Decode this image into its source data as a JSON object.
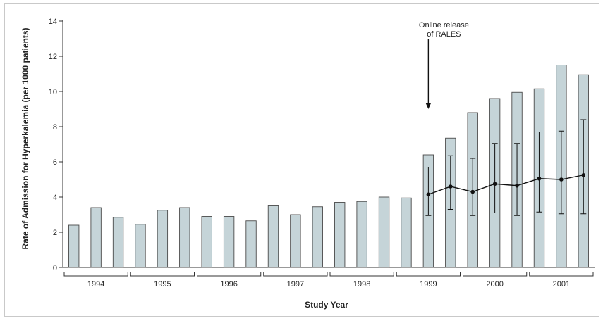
{
  "chart_data": {
    "type": "bar",
    "xlabel": "Study Year",
    "ylabel": "Rate of Admission for Hyperkalemia (per 1000 patients)",
    "ylim": [
      0,
      14
    ],
    "yticks": [
      0,
      2,
      4,
      6,
      8,
      10,
      12,
      14
    ],
    "ytick_labels": [
      "0",
      "2",
      "4",
      "6",
      "8",
      "10",
      "12",
      "14"
    ],
    "years": [
      "1994",
      "1995",
      "1996",
      "1997",
      "1998",
      "1999",
      "2000",
      "2001"
    ],
    "bars_per_year": 3,
    "quarters": [
      {
        "year": "1994",
        "q": 1
      },
      {
        "year": "1994",
        "q": 2
      },
      {
        "year": "1994",
        "q": 3
      },
      {
        "year": "1995",
        "q": 1
      },
      {
        "year": "1995",
        "q": 2
      },
      {
        "year": "1995",
        "q": 3
      },
      {
        "year": "1996",
        "q": 1
      },
      {
        "year": "1996",
        "q": 2
      },
      {
        "year": "1996",
        "q": 3
      },
      {
        "year": "1997",
        "q": 1
      },
      {
        "year": "1997",
        "q": 2
      },
      {
        "year": "1997",
        "q": 3
      },
      {
        "year": "1998",
        "q": 1
      },
      {
        "year": "1998",
        "q": 2
      },
      {
        "year": "1998",
        "q": 3
      },
      {
        "year": "1999",
        "q": 1
      },
      {
        "year": "1999",
        "q": 2
      },
      {
        "year": "1999",
        "q": 3
      },
      {
        "year": "2000",
        "q": 1
      },
      {
        "year": "2000",
        "q": 2
      },
      {
        "year": "2000",
        "q": 3
      },
      {
        "year": "2001",
        "q": 1
      },
      {
        "year": "2001",
        "q": 2
      },
      {
        "year": "2001",
        "q": 3
      }
    ],
    "series": [
      {
        "kind": "bar",
        "color": "#c5d4d8",
        "values": [
          2.4,
          3.4,
          2.85,
          2.45,
          3.25,
          3.4,
          2.9,
          2.9,
          2.65,
          3.5,
          3.0,
          3.45,
          3.7,
          3.75,
          4.0,
          3.95,
          6.4,
          7.35,
          8.8,
          9.6,
          9.95,
          10.15,
          11.5,
          10.95
        ]
      },
      {
        "kind": "line",
        "color": "#111111",
        "start_index": 16,
        "values": [
          4.15,
          4.6,
          4.3,
          4.75,
          4.65,
          5.05,
          5.0,
          5.25
        ],
        "ci_low": [
          2.95,
          3.3,
          2.95,
          3.1,
          2.95,
          3.15,
          3.05,
          3.05
        ],
        "ci_high": [
          5.7,
          6.35,
          6.2,
          7.05,
          7.05,
          7.7,
          7.75,
          8.4
        ]
      }
    ],
    "annotation": {
      "lines": [
        "Online release",
        "of RALES"
      ],
      "arrow_at_index": 16,
      "arrow_from_value": 13.0,
      "arrow_to_value": 9.0
    },
    "grid": false,
    "legend": "none"
  }
}
